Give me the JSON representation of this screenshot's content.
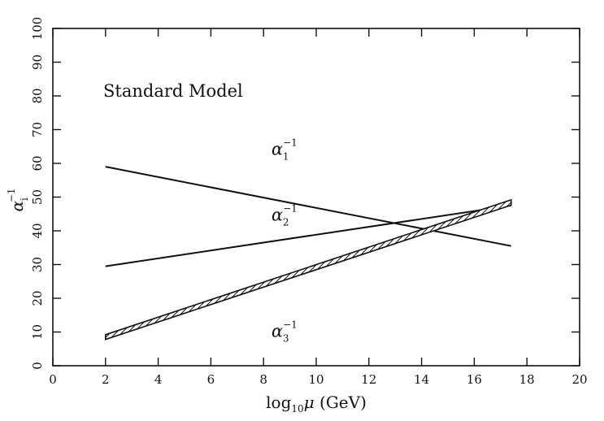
{
  "chart_data": {
    "type": "line",
    "title": "Standard Model",
    "xlabel": {
      "main": "log",
      "sub": "10",
      "var": "μ",
      "unit": " (GeV)"
    },
    "ylabel": {
      "base": "α",
      "sub": "i",
      "sup": "−1"
    },
    "xlim": [
      0,
      20
    ],
    "ylim": [
      0,
      100
    ],
    "xticks": [
      0,
      2,
      4,
      6,
      8,
      10,
      12,
      14,
      16,
      18,
      20
    ],
    "yticks": [
      0,
      10,
      20,
      30,
      40,
      50,
      60,
      70,
      80,
      90,
      100
    ],
    "grid": false,
    "series": [
      {
        "base": "α",
        "sub": "1",
        "sup": "−1",
        "x": [
          2,
          17.4
        ],
        "y": [
          59,
          35.5
        ],
        "band": false
      },
      {
        "base": "α",
        "sub": "2",
        "sup": "−1",
        "x": [
          2,
          17.4
        ],
        "y": [
          29.5,
          47.5
        ],
        "band": false
      },
      {
        "base": "α",
        "sub": "3",
        "sup": "−1",
        "x": [
          2,
          17.4
        ],
        "y_upper": [
          9.2,
          49.2
        ],
        "y_lower": [
          7.8,
          47.6
        ],
        "band": true
      }
    ]
  }
}
